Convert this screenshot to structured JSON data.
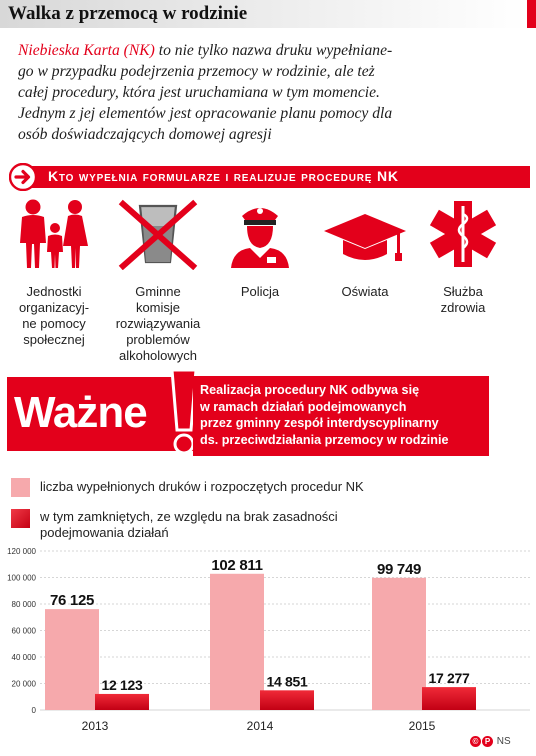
{
  "title": "Walka z przemocą w rodzinie",
  "intro": {
    "highlight": "Niebieska Karta (NK)",
    "lines": [
      " to nie tylko nazwa druku wypełniane-",
      "go w przypadku podejrzenia przemocy w rodzinie, ale też",
      "całej procedury, która jest uruchamiana w tym momencie.",
      "Jednym z jej elementów jest opracowanie planu pomocy dla",
      "osób doświadczających domowej agresji"
    ]
  },
  "section_header": "Kto wypełnia formularze i realizuje procedurę NK",
  "institutions": [
    {
      "icon": "family-icon",
      "label_lines": [
        "Jednostki",
        "organizacyj-",
        "ne pomocy",
        "społecznej"
      ]
    },
    {
      "icon": "no-alcohol-icon",
      "label_lines": [
        "Gminne",
        "komisje",
        "rozwiązywania",
        "problemów",
        "alkoholowych"
      ]
    },
    {
      "icon": "police-officer-icon",
      "label_lines": [
        "Policja"
      ]
    },
    {
      "icon": "graduation-cap-icon",
      "label_lines": [
        "Oświata"
      ]
    },
    {
      "icon": "star-of-life-icon",
      "label_lines": [
        "Służba",
        "zdrowia"
      ]
    }
  ],
  "important": {
    "word": "Ważne",
    "text_lines": [
      "Realizacja procedury NK odbywa się",
      "w ramach działań podejmowanych",
      "przez gminny zespół interdyscyplinarny",
      "ds. przeciwdziałania przemocy w rodzinie"
    ]
  },
  "legend": [
    {
      "color": "#f6a9ac",
      "text_lines": [
        "liczba wypełnionych druków i rozpoczętych procedur NK"
      ]
    },
    {
      "color": "#e3001b",
      "text_lines": [
        "w tym zamkniętych, ze względu na brak zasadności",
        "podejmowania działań"
      ]
    }
  ],
  "chart_data": {
    "type": "bar",
    "categories": [
      "2013",
      "2014",
      "2015"
    ],
    "series": [
      {
        "name": "liczba wypełnionych druków i rozpoczętych procedur NK",
        "color": "#f6a9ac",
        "values": [
          76125,
          102811,
          99749
        ]
      },
      {
        "name": "w tym zamkniętych, ze względu na brak zasadności podejmowania działań",
        "color": "#e3001b",
        "values": [
          12123,
          14851,
          17277
        ]
      }
    ],
    "data_labels": [
      [
        "76 125",
        "102 811",
        "99 749"
      ],
      [
        "12 123",
        "14 851",
        "17 277"
      ]
    ],
    "yticks": [
      0,
      20000,
      40000,
      60000,
      80000,
      100000,
      120000
    ],
    "ytick_labels": [
      "0",
      "20 000",
      "40 000",
      "60 000",
      "80 000",
      "100 000",
      "120 000"
    ],
    "ylim": [
      0,
      120000
    ],
    "grid": true
  },
  "footer": {
    "brand": "NS"
  }
}
